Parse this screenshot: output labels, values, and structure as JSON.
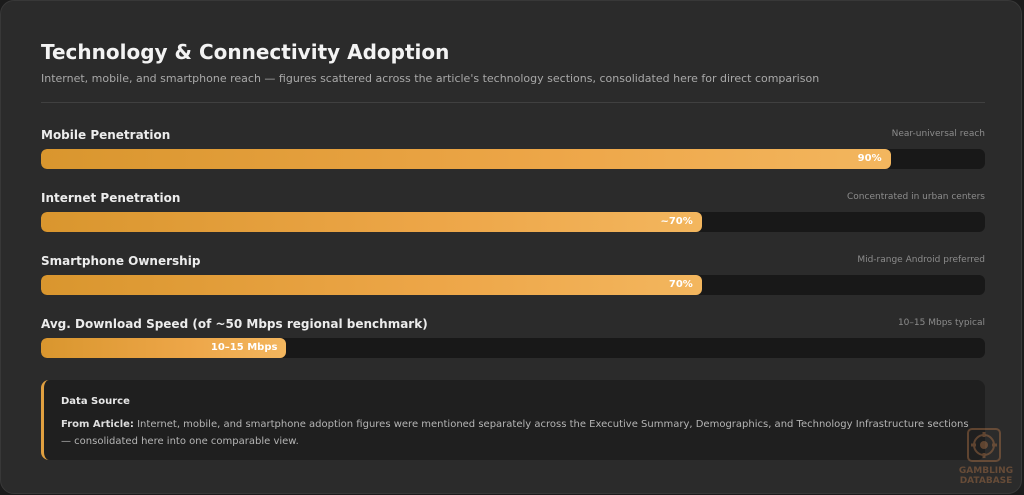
{
  "header": {
    "title": "Technology & Connectivity Adoption",
    "subtitle": "Internet, mobile, and smartphone reach — figures scattered across the article's technology sections, consolidated here for direct comparison"
  },
  "chart_data": {
    "type": "bar",
    "orientation": "horizontal",
    "title": "Technology & Connectivity Adoption",
    "categories": [
      "Mobile Penetration",
      "Internet Penetration",
      "Smartphone Ownership",
      "Avg. Download Speed (of ~50 Mbps regional benchmark)"
    ],
    "values": [
      90,
      70,
      70,
      26
    ],
    "units": "percent of full bar",
    "value_labels": [
      "90%",
      "~70%",
      "70%",
      "10–15 Mbps"
    ],
    "notes": [
      "Near-universal reach",
      "Concentrated in urban centers",
      "Mid-range Android preferred",
      "10–15 Mbps typical"
    ],
    "xlim": [
      0,
      100
    ],
    "grid": false,
    "colors": {
      "bar_start": "#d9962e",
      "bar_end": "#f3b65e",
      "track": "#181818"
    }
  },
  "source": {
    "title": "Data Source",
    "lead": "From Article:",
    "text": "Internet, mobile, and smartphone adoption figures were mentioned separately across the Executive Summary, Demographics, and Technology Infrastructure sections — consolidated here into one comparable view."
  },
  "watermark": {
    "line1": "GAMBLING",
    "line2": "DATABASE"
  }
}
